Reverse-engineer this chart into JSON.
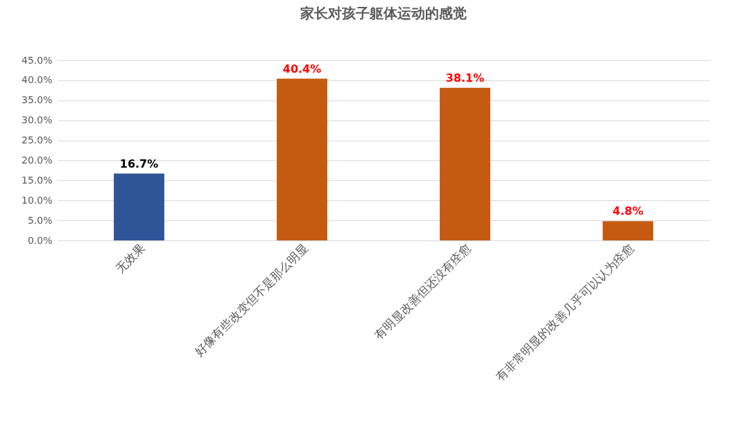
{
  "chart_data": {
    "type": "bar",
    "title": "家长对孩子躯体运动的感觉",
    "categories": [
      "无效果",
      "好像有些改变但不是那么明显",
      "有明显改善但还没有痊愈",
      "有非常明显的改善几乎可以认为痊愈"
    ],
    "values": [
      16.7,
      40.4,
      38.1,
      4.8
    ],
    "colors": [
      "#2f5597",
      "#c55a11",
      "#c55a11",
      "#c55a11"
    ],
    "ylim": [
      0,
      45
    ],
    "yticks": [
      {
        "value": 0,
        "label": "0.0%"
      },
      {
        "value": 5,
        "label": "5.0%"
      },
      {
        "value": 10,
        "label": "10.0%"
      },
      {
        "value": 15,
        "label": "15.0%"
      },
      {
        "value": 20,
        "label": "20.0%"
      },
      {
        "value": 25,
        "label": "25.0%"
      },
      {
        "value": 30,
        "label": "30.0%"
      },
      {
        "value": 35,
        "label": "35.0%"
      },
      {
        "value": 40,
        "label": "40.0%"
      },
      {
        "value": 45,
        "label": "45.0%"
      }
    ],
    "value_labels": [
      "16.7%",
      "40.4%",
      "38.1%",
      "4.8%"
    ],
    "grid": "y"
  }
}
